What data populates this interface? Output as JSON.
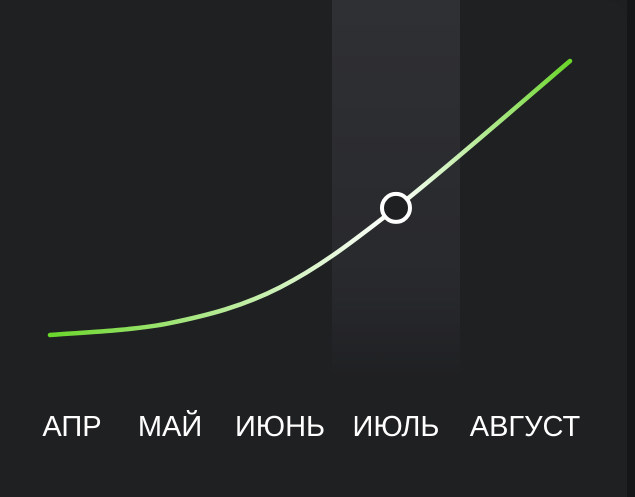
{
  "chart_data": {
    "type": "line",
    "categories": [
      "АПР",
      "МАЙ",
      "ИЮНЬ",
      "ИЮЛЬ",
      "АВГУСТ"
    ],
    "values": [
      1,
      4,
      13,
      33,
      70
    ],
    "highlighted_category": "ИЮЛЬ",
    "ylim": [
      0,
      80
    ],
    "grid": false,
    "legend": "none",
    "colors": {
      "line_start": "#6bd62b",
      "line_mid": "#ffffff",
      "line_end": "#6bd62b",
      "highlight_band": "#2b2c30",
      "marker_stroke": "#ffffff",
      "marker_fill": "#1f2022",
      "label": "#ffffff",
      "background": "#1f2022"
    }
  }
}
